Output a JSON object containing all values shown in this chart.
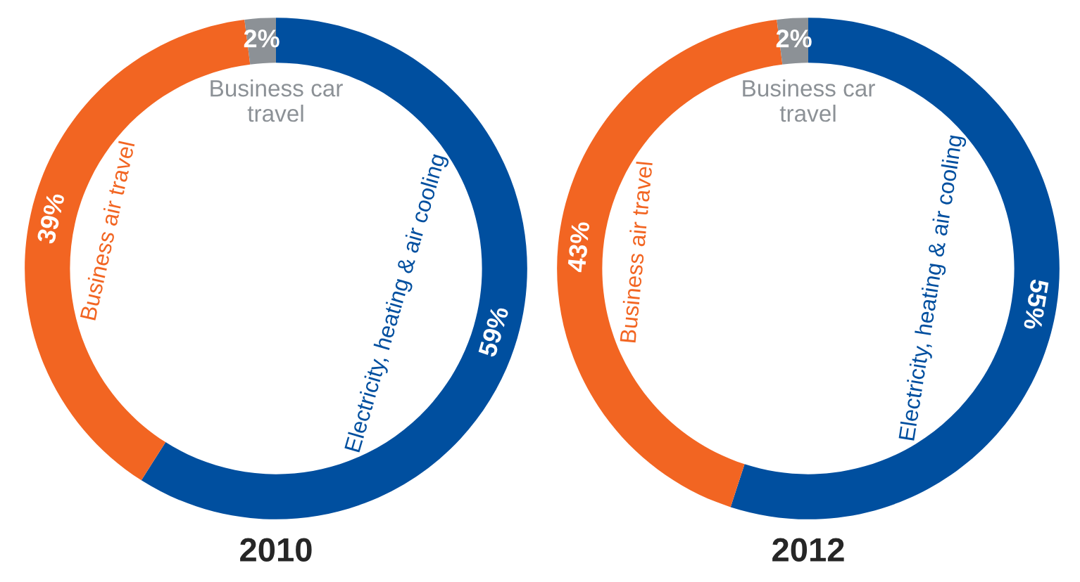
{
  "chart_data": [
    {
      "type": "donut",
      "title": "2010",
      "categories": [
        "Electricity, heating & air cooling",
        "Business air travel",
        "Business car travel"
      ],
      "values": [
        59,
        39,
        2
      ],
      "value_labels": [
        "59%",
        "39%",
        "2%"
      ],
      "colors": [
        "#004f9f",
        "#f26522",
        "#8c9196"
      ]
    },
    {
      "type": "donut",
      "title": "2012",
      "categories": [
        "Electricity, heating & air cooling",
        "Business air travel",
        "Business car travel"
      ],
      "values": [
        55,
        43,
        2
      ],
      "value_labels": [
        "55%",
        "43%",
        "2%"
      ],
      "colors": [
        "#004f9f",
        "#f26522",
        "#8c9196"
      ]
    }
  ]
}
